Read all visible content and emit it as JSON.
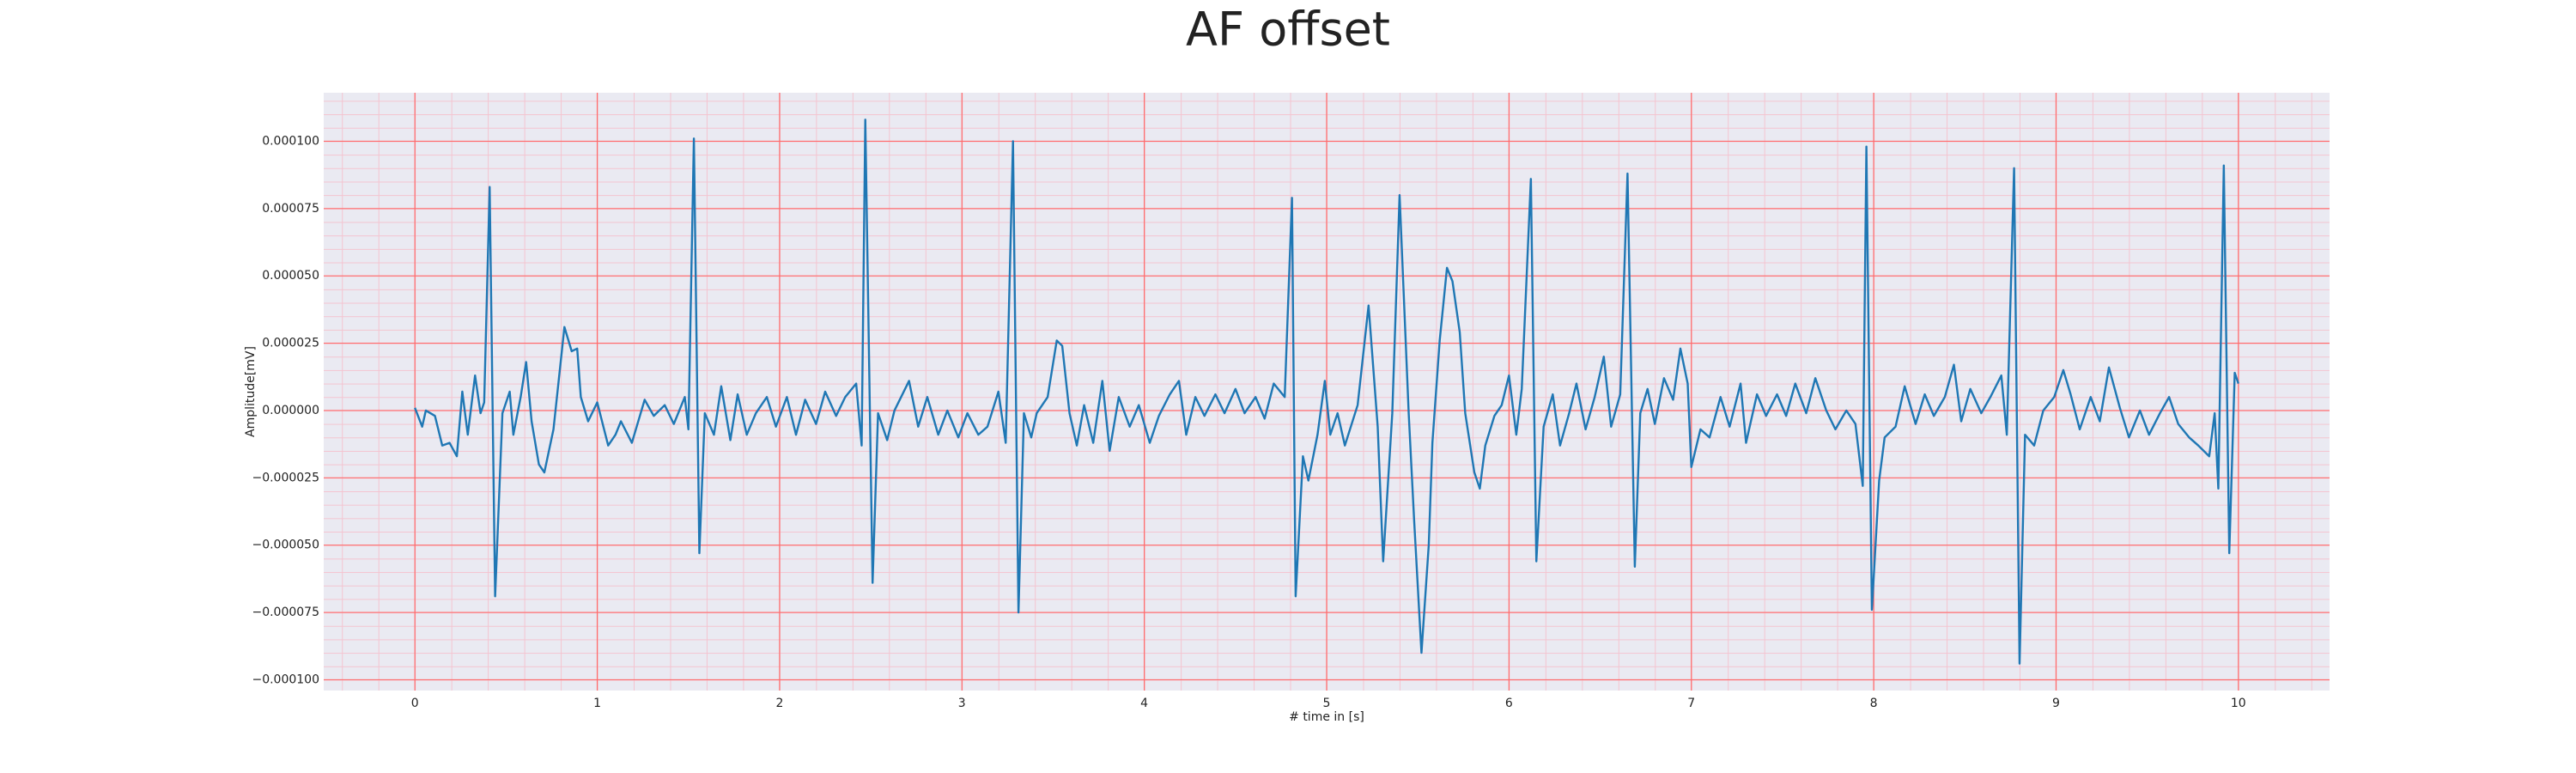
{
  "chart_data": {
    "type": "line",
    "title": "AF offset",
    "xlabel": "# time in [s]",
    "ylabel": "Amplitude[mV]",
    "color": "#1f77b4",
    "background": "#eaeaf2",
    "grid": true,
    "grid_color": "#ff6b6b",
    "minor_grid": true,
    "minor_grid_color": "#f4c4d0",
    "xlim": [
      -0.5,
      10.5
    ],
    "xticks": [
      0,
      1,
      2,
      3,
      4,
      5,
      6,
      7,
      8,
      9,
      10
    ],
    "ylim": [
      -0.000104,
      0.000118
    ],
    "yticks": [
      {
        "value": -0.0001,
        "label": "−0.000100"
      },
      {
        "value": -7.5e-05,
        "label": "−0.000075"
      },
      {
        "value": -5e-05,
        "label": "−0.000050"
      },
      {
        "value": -2.5e-05,
        "label": "−0.000025"
      },
      {
        "value": 0,
        "label": "0.000000"
      },
      {
        "value": 2.5e-05,
        "label": "0.000025"
      },
      {
        "value": 5e-05,
        "label": "0.000050"
      },
      {
        "value": 7.5e-05,
        "label": "0.000075"
      },
      {
        "value": 0.0001,
        "label": "0.000100"
      }
    ],
    "x": [
      0,
      0.04,
      0.06,
      0.11,
      0.15,
      0.19,
      0.23,
      0.26,
      0.29,
      0.33,
      0.36,
      0.38,
      0.41,
      0.44,
      0.48,
      0.52,
      0.54,
      0.58,
      0.61,
      0.64,
      0.68,
      0.71,
      0.76,
      0.82,
      0.86,
      0.89,
      0.91,
      0.95,
      1.0,
      1.06,
      1.1,
      1.13,
      1.19,
      1.26,
      1.31,
      1.37,
      1.42,
      1.48,
      1.5,
      1.53,
      1.56,
      1.59,
      1.64,
      1.68,
      1.73,
      1.77,
      1.82,
      1.87,
      1.93,
      1.98,
      2.04,
      2.09,
      2.14,
      2.2,
      2.25,
      2.31,
      2.36,
      2.42,
      2.45,
      2.47,
      2.51,
      2.54,
      2.59,
      2.63,
      2.71,
      2.76,
      2.81,
      2.87,
      2.92,
      2.98,
      3.03,
      3.09,
      3.14,
      3.2,
      3.24,
      3.28,
      3.31,
      3.34,
      3.38,
      3.41,
      3.47,
      3.52,
      3.55,
      3.59,
      3.63,
      3.67,
      3.72,
      3.77,
      3.81,
      3.86,
      3.92,
      3.97,
      4.03,
      4.08,
      4.14,
      4.19,
      4.23,
      4.28,
      4.33,
      4.39,
      4.44,
      4.5,
      4.55,
      4.61,
      4.66,
      4.71,
      4.77,
      4.81,
      4.83,
      4.87,
      4.9,
      4.95,
      4.99,
      5.02,
      5.06,
      5.1,
      5.17,
      5.23,
      5.28,
      5.31,
      5.36,
      5.4,
      5.45,
      5.48,
      5.52,
      5.56,
      5.58,
      5.62,
      5.66,
      5.69,
      5.73,
      5.76,
      5.81,
      5.84,
      5.87,
      5.92,
      5.96,
      6.0,
      6.04,
      6.07,
      6.12,
      6.15,
      6.19,
      6.24,
      6.28,
      6.33,
      6.37,
      6.42,
      6.47,
      6.52,
      6.56,
      6.61,
      6.65,
      6.69,
      6.72,
      6.76,
      6.8,
      6.85,
      6.9,
      6.94,
      6.98,
      7.0,
      7.05,
      7.1,
      7.16,
      7.21,
      7.27,
      7.3,
      7.36,
      7.41,
      7.47,
      7.52,
      7.57,
      7.63,
      7.68,
      7.74,
      7.79,
      7.85,
      7.9,
      7.94,
      7.96,
      7.99,
      8.03,
      8.06,
      8.12,
      8.17,
      8.23,
      8.28,
      8.33,
      8.39,
      8.44,
      8.48,
      8.53,
      8.59,
      8.64,
      8.7,
      8.73,
      8.77,
      8.8,
      8.83,
      8.88,
      8.93,
      8.99,
      9.04,
      9.08,
      9.13,
      9.19,
      9.24,
      9.29,
      9.35,
      9.4,
      9.46,
      9.51,
      9.57,
      9.62,
      9.67,
      9.73,
      9.78,
      9.84,
      9.87,
      9.89,
      9.92,
      9.95,
      9.98,
      10.0
    ],
    "values": [
      1e-06,
      -6e-06,
      0,
      -2e-06,
      -1.3e-05,
      -1.2e-05,
      -1.7e-05,
      7e-06,
      -9e-06,
      1.3e-05,
      -1e-06,
      3e-06,
      8.3e-05,
      -6.9e-05,
      -1e-06,
      7e-06,
      -9e-06,
      5e-06,
      1.8e-05,
      -4e-06,
      -2e-05,
      -2.3e-05,
      -7e-06,
      3.1e-05,
      2.2e-05,
      2.3e-05,
      5e-06,
      -4e-06,
      3e-06,
      -1.3e-05,
      -9e-06,
      -4e-06,
      -1.2e-05,
      4e-06,
      -2e-06,
      2e-06,
      -5e-06,
      5e-06,
      -7e-06,
      0.000101,
      -5.3e-05,
      -1e-06,
      -9e-06,
      9e-06,
      -1.1e-05,
      6e-06,
      -9e-06,
      -1e-06,
      5e-06,
      -6e-06,
      5e-06,
      -9e-06,
      4e-06,
      -5e-06,
      7e-06,
      -2e-06,
      5e-06,
      1e-05,
      -1.3e-05,
      0.000108,
      -6.4e-05,
      -1e-06,
      -1.1e-05,
      0,
      1.1e-05,
      -6e-06,
      5e-06,
      -9e-06,
      0,
      -1e-05,
      -1e-06,
      -9e-06,
      -6e-06,
      7e-06,
      -1.2e-05,
      0.0001,
      -7.5e-05,
      -1e-06,
      -1e-05,
      -1e-06,
      5e-06,
      2.6e-05,
      2.4e-05,
      -1e-06,
      -1.3e-05,
      2e-06,
      -1.2e-05,
      1.1e-05,
      -1.5e-05,
      5e-06,
      -6e-06,
      2e-06,
      -1.2e-05,
      -2e-06,
      6e-06,
      1.1e-05,
      -9e-06,
      5e-06,
      -2e-06,
      6e-06,
      -1e-06,
      8e-06,
      -1e-06,
      5e-06,
      -3e-06,
      1e-05,
      5e-06,
      7.9e-05,
      -6.9e-05,
      -1.7e-05,
      -2.6e-05,
      -9e-06,
      1.1e-05,
      -9e-06,
      -1e-06,
      -1.3e-05,
      2e-06,
      3.9e-05,
      -6e-06,
      -5.6e-05,
      -1e-06,
      8e-05,
      -1e-06,
      -4.1e-05,
      -9e-05,
      -5e-05,
      -1.2e-05,
      2.6e-05,
      5.3e-05,
      4.8e-05,
      2.9e-05,
      -1e-06,
      -2.3e-05,
      -2.9e-05,
      -1.3e-05,
      -2e-06,
      2e-06,
      1.3e-05,
      -9e-06,
      8e-06,
      8.6e-05,
      -5.6e-05,
      -6e-06,
      6e-06,
      -1.3e-05,
      -1e-06,
      1e-05,
      -7e-06,
      5e-06,
      2e-05,
      -6e-06,
      6e-06,
      8.8e-05,
      -5.8e-05,
      -1e-06,
      8e-06,
      -5e-06,
      1.2e-05,
      4e-06,
      2.3e-05,
      1e-05,
      -2.1e-05,
      -7e-06,
      -1e-05,
      5e-06,
      -6e-06,
      1e-05,
      -1.2e-05,
      6e-06,
      -2e-06,
      6e-06,
      -2e-06,
      1e-05,
      -1e-06,
      1.2e-05,
      0,
      -7e-06,
      0,
      -5e-06,
      -2.8e-05,
      9.8e-05,
      -7.4e-05,
      -2.6e-05,
      -1e-05,
      -6e-06,
      9e-06,
      -5e-06,
      6e-06,
      -2e-06,
      5e-06,
      1.7e-05,
      -4e-06,
      8e-06,
      -1e-06,
      5e-06,
      1.3e-05,
      -9e-06,
      9e-05,
      -9.4e-05,
      -9e-06,
      -1.3e-05,
      0,
      5e-06,
      1.5e-05,
      6e-06,
      -7e-06,
      5e-06,
      -4e-06,
      1.6e-05,
      1e-06,
      -1e-05,
      0,
      -9e-06,
      -1e-06,
      5e-06,
      -5e-06,
      -1e-05,
      -1.3e-05,
      -1.7e-05,
      -1e-06,
      -2.9e-05,
      9.1e-05,
      -5.3e-05,
      1.4e-05,
      1e-05
    ]
  }
}
